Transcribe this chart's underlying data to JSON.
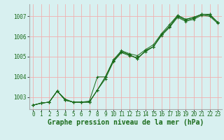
{
  "title": "Graphe pression niveau de la mer (hPa)",
  "bg_color": "#d8f0f0",
  "grid_color": "#f0b0b0",
  "line_color": "#1a6b1a",
  "spine_color": "#aaaaaa",
  "xlim": [
    -0.5,
    23.5
  ],
  "ylim": [
    1002.4,
    1007.6
  ],
  "yticks": [
    1003,
    1004,
    1005,
    1006,
    1007
  ],
  "xticks": [
    0,
    1,
    2,
    3,
    4,
    5,
    6,
    7,
    8,
    9,
    10,
    11,
    12,
    13,
    14,
    15,
    16,
    17,
    18,
    19,
    20,
    21,
    22,
    23
  ],
  "series": [
    [
      1002.6,
      1002.7,
      1002.75,
      1003.3,
      1002.85,
      1002.75,
      1002.75,
      1002.75,
      1003.35,
      1004.0,
      1004.8,
      1005.25,
      1005.1,
      1004.9,
      1005.3,
      1005.5,
      1006.1,
      1006.5,
      1007.0,
      1006.8,
      1006.9,
      1007.1,
      1007.05,
      1006.7
    ],
    [
      1002.6,
      1002.7,
      1002.75,
      1003.3,
      1002.85,
      1002.75,
      1002.75,
      1002.75,
      1003.35,
      1004.0,
      1004.8,
      1005.25,
      1005.1,
      1004.9,
      1005.3,
      1005.5,
      1006.1,
      1006.5,
      1007.05,
      1006.85,
      1006.95,
      1007.1,
      1007.1,
      1006.7
    ],
    [
      1002.6,
      1002.7,
      1002.75,
      1003.3,
      1002.85,
      1002.75,
      1002.75,
      1002.75,
      1003.35,
      1003.9,
      1004.75,
      1005.2,
      1005.05,
      1004.95,
      1005.25,
      1005.5,
      1006.05,
      1006.45,
      1006.95,
      1006.75,
      1006.85,
      1007.05,
      1007.0,
      1006.65
    ],
    [
      1002.6,
      1002.7,
      1002.75,
      1003.3,
      1002.9,
      1002.75,
      1002.75,
      1002.8,
      1004.0,
      1004.0,
      1004.85,
      1005.3,
      1005.15,
      1005.05,
      1005.35,
      1005.6,
      1006.15,
      1006.6,
      1007.05,
      1006.85,
      1006.95,
      1007.1,
      1007.1,
      1006.7
    ]
  ],
  "xlabel_fontsize": 5.5,
  "ylabel_fontsize": 5.5,
  "title_fontsize": 7,
  "figsize": [
    3.2,
    2.0
  ],
  "dpi": 100
}
